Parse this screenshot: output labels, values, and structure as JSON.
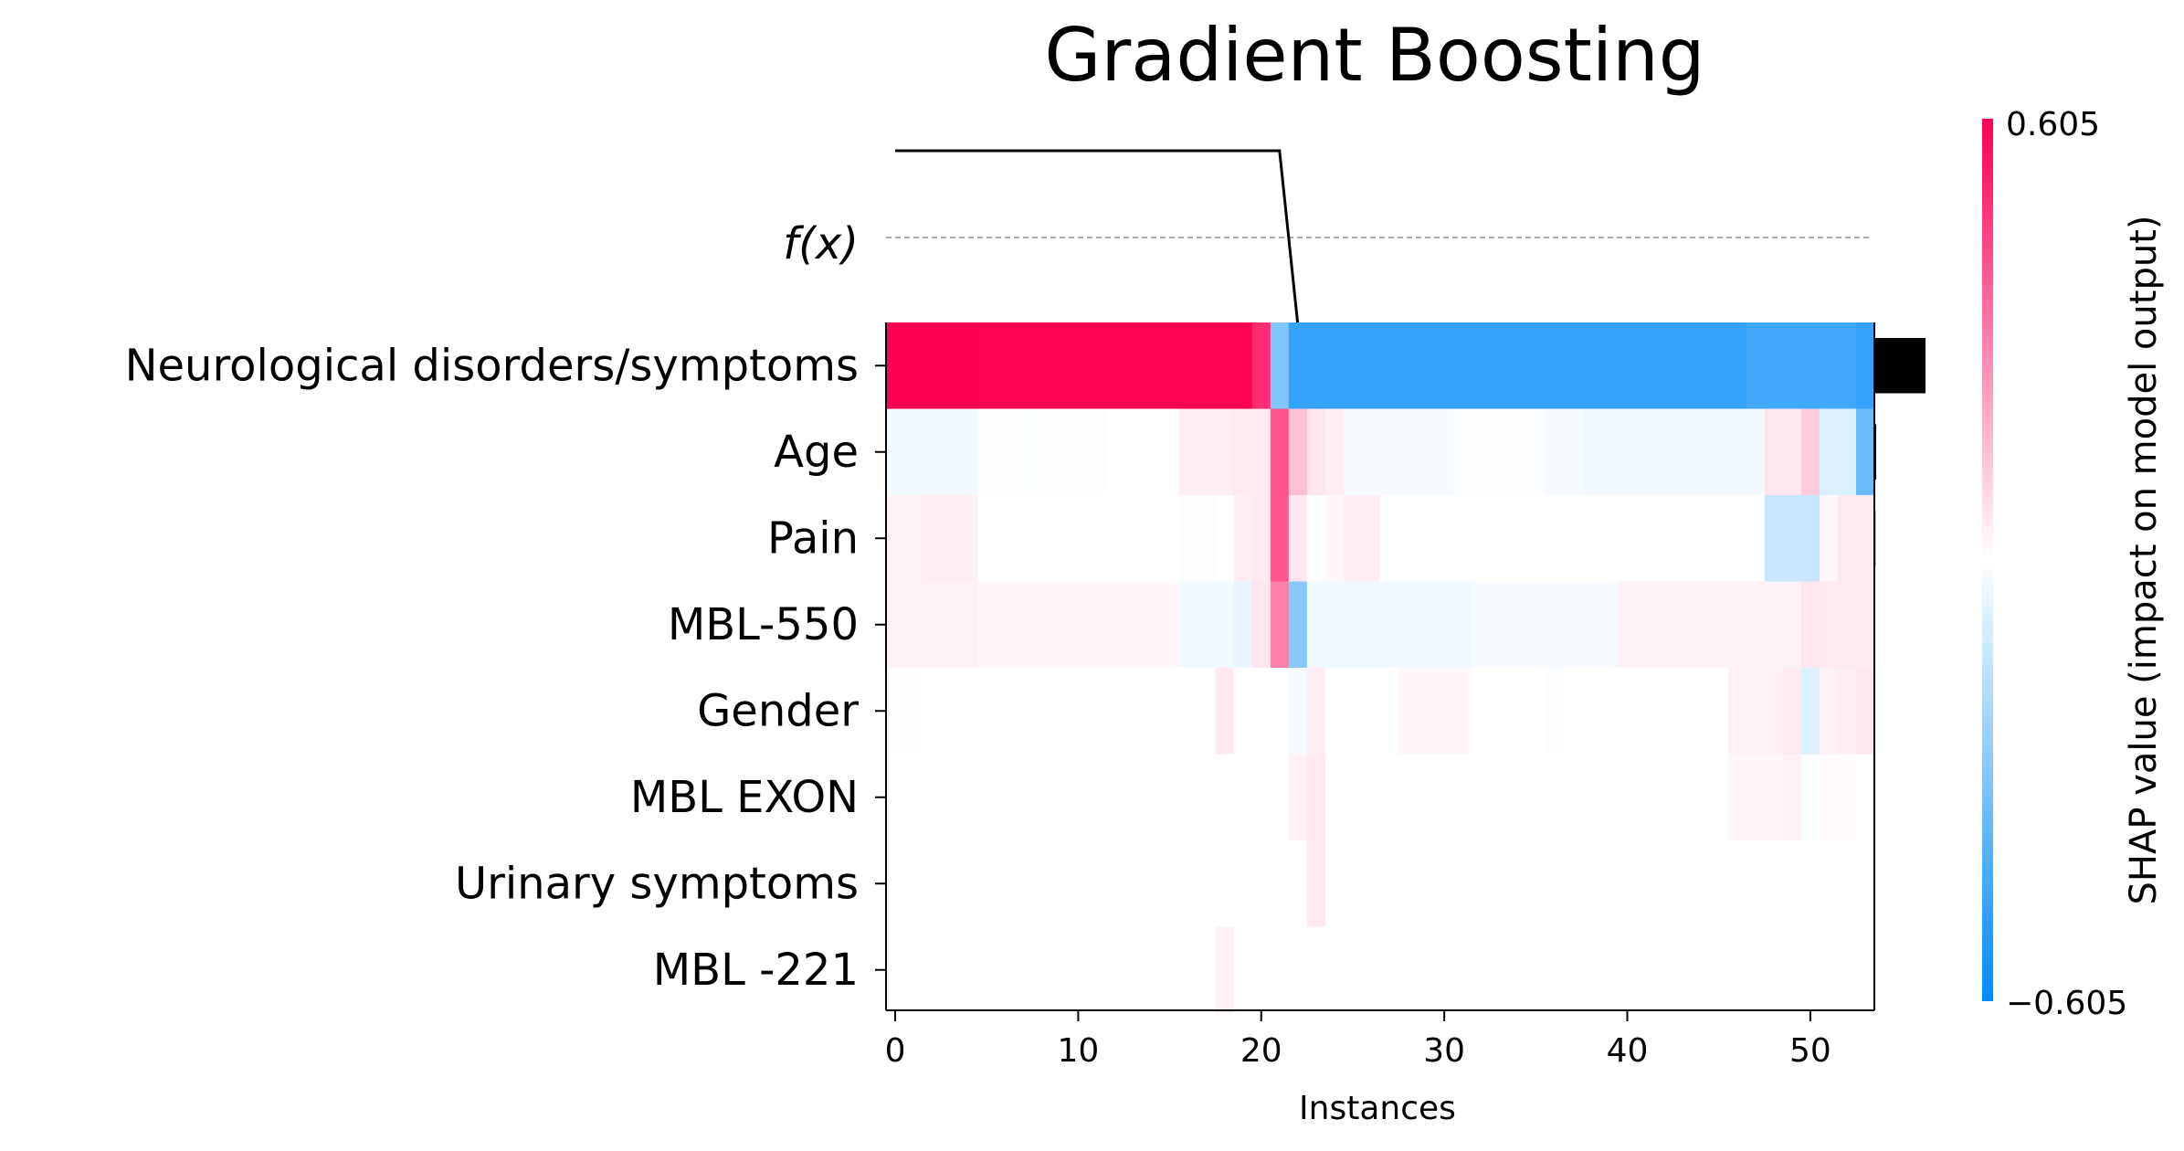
{
  "chart_data": {
    "type": "heatmap",
    "title": "Gradient Boosting",
    "xlabel": "Instances",
    "fx_label": "f(x)",
    "features": [
      "Neurological disorders/symptoms",
      "Age",
      "Pain",
      "MBL-550",
      "Gender",
      "MBL EXON",
      "Urinary symptoms",
      "MBL -221"
    ],
    "x_ticks": [
      0,
      10,
      20,
      30,
      40,
      50
    ],
    "n_instances": 54,
    "colorbar": {
      "label": "SHAP value (impact on model output)",
      "max_label": "0.605",
      "min_label": "−0.605",
      "max": 0.605,
      "min": -0.605,
      "pos_color": "#ff0052",
      "neg_color": "#008bfb"
    },
    "fx_values": [
      0.3,
      0.3,
      0.3,
      0.3,
      0.3,
      0.3,
      0.3,
      0.3,
      0.3,
      0.3,
      0.3,
      0.3,
      0.3,
      0.3,
      0.3,
      0.3,
      0.3,
      0.3,
      0.3,
      0.3,
      0.3,
      0.3,
      -0.3,
      -0.3,
      -0.3,
      -0.3,
      -0.3,
      -0.3,
      -0.3,
      -0.3,
      -0.3,
      -0.3,
      -0.3,
      -0.3,
      -0.3,
      -0.3,
      -0.3,
      -0.3,
      -0.3,
      -0.3,
      -0.3,
      -0.3,
      -0.3,
      -0.3,
      -0.3,
      -0.3,
      -0.3,
      -0.3,
      -0.3,
      -0.3,
      -0.3,
      -0.3,
      -0.3,
      -0.3
    ],
    "feature_importance": [
      0.55,
      0.02,
      0.012,
      0.01,
      0.006,
      0.003,
      0.002,
      0.001
    ],
    "shap_values": [
      [
        0.61,
        0.61,
        0.61,
        0.61,
        0.61,
        0.6,
        0.6,
        0.6,
        0.6,
        0.6,
        0.6,
        0.6,
        0.6,
        0.6,
        0.6,
        0.6,
        0.6,
        0.6,
        0.6,
        0.6,
        0.5,
        -0.3,
        -0.48,
        -0.48,
        -0.48,
        -0.48,
        -0.48,
        -0.48,
        -0.48,
        -0.48,
        -0.48,
        -0.48,
        -0.48,
        -0.48,
        -0.48,
        -0.48,
        -0.48,
        -0.48,
        -0.48,
        -0.48,
        -0.48,
        -0.48,
        -0.48,
        -0.48,
        -0.48,
        -0.48,
        -0.48,
        -0.45,
        -0.45,
        -0.45,
        -0.45,
        -0.45,
        -0.45,
        -0.48
      ],
      [
        -0.03,
        -0.03,
        -0.03,
        -0.03,
        -0.03,
        -0.01,
        -0.01,
        -0.01,
        -0.01,
        -0.01,
        -0.01,
        -0.01,
        0.0,
        0.0,
        0.0,
        0.0,
        0.04,
        0.04,
        0.04,
        0.05,
        0.05,
        0.4,
        0.15,
        0.06,
        0.04,
        -0.02,
        -0.02,
        -0.02,
        -0.02,
        -0.02,
        -0.02,
        -0.01,
        -0.01,
        -0.01,
        -0.01,
        -0.01,
        -0.02,
        -0.02,
        -0.03,
        -0.03,
        -0.03,
        -0.03,
        -0.03,
        -0.03,
        -0.03,
        -0.03,
        -0.03,
        -0.03,
        0.06,
        0.06,
        0.12,
        -0.08,
        -0.08,
        -0.35
      ],
      [
        0.03,
        0.03,
        0.04,
        0.04,
        0.04,
        0.0,
        0.0,
        0.0,
        0.0,
        0.0,
        0.0,
        0.0,
        0.0,
        0.0,
        0.0,
        0.0,
        -0.01,
        -0.01,
        0.0,
        0.04,
        0.05,
        0.4,
        0.06,
        -0.01,
        0.02,
        0.04,
        0.04,
        0.0,
        0.0,
        0.0,
        0.0,
        0.0,
        0.0,
        0.0,
        0.0,
        0.0,
        0.0,
        0.0,
        0.0,
        0.0,
        0.0,
        0.0,
        0.0,
        0.0,
        0.0,
        0.0,
        0.0,
        0.0,
        -0.13,
        -0.13,
        -0.13,
        0.02,
        0.05,
        0.05
      ],
      [
        0.03,
        0.03,
        0.03,
        0.03,
        0.03,
        0.02,
        0.02,
        0.02,
        0.02,
        0.02,
        0.02,
        0.02,
        0.02,
        0.02,
        0.02,
        0.02,
        -0.03,
        -0.03,
        -0.03,
        -0.05,
        0.06,
        0.3,
        -0.28,
        -0.03,
        -0.03,
        -0.03,
        -0.03,
        -0.03,
        -0.03,
        -0.03,
        -0.03,
        -0.03,
        -0.02,
        -0.02,
        -0.02,
        -0.02,
        -0.02,
        -0.02,
        -0.02,
        -0.02,
        0.03,
        0.03,
        0.03,
        0.03,
        0.03,
        0.03,
        0.03,
        0.03,
        0.03,
        0.03,
        0.06,
        0.05,
        0.05,
        0.05
      ],
      [
        -0.01,
        -0.01,
        0.0,
        0.0,
        0.0,
        0.0,
        0.0,
        0.0,
        0.0,
        0.0,
        0.0,
        0.0,
        0.0,
        0.0,
        0.0,
        0.0,
        0.0,
        0.0,
        0.05,
        0.0,
        0.0,
        0.0,
        -0.02,
        0.04,
        0.0,
        0.0,
        0.0,
        0.0,
        0.02,
        0.02,
        0.02,
        0.02,
        0.0,
        0.0,
        0.0,
        0.0,
        -0.01,
        0.0,
        0.0,
        0.0,
        0.0,
        0.0,
        0.0,
        0.0,
        0.0,
        0.0,
        0.03,
        0.03,
        0.03,
        0.05,
        -0.08,
        0.03,
        0.04,
        0.06
      ],
      [
        0.0,
        0.0,
        0.0,
        0.0,
        0.0,
        0.0,
        0.0,
        0.0,
        0.0,
        0.0,
        0.0,
        0.0,
        0.0,
        0.0,
        0.0,
        0.0,
        0.0,
        0.0,
        0.0,
        0.0,
        0.0,
        0.0,
        0.03,
        0.05,
        0.0,
        0.0,
        0.0,
        0.0,
        0.0,
        0.0,
        0.0,
        0.0,
        0.0,
        0.0,
        0.0,
        0.0,
        0.0,
        0.0,
        0.0,
        0.0,
        0.0,
        0.0,
        0.0,
        0.0,
        0.0,
        0.0,
        0.02,
        0.02,
        0.02,
        0.03,
        -0.01,
        0.01,
        0.01,
        0.0
      ],
      [
        0.0,
        0.0,
        0.0,
        0.0,
        0.0,
        0.0,
        0.0,
        0.0,
        0.0,
        0.0,
        0.0,
        0.0,
        0.0,
        0.0,
        0.0,
        0.0,
        0.0,
        0.0,
        0.0,
        0.0,
        0.0,
        0.0,
        0.0,
        0.05,
        0.0,
        0.0,
        0.0,
        0.0,
        0.0,
        0.0,
        0.0,
        0.0,
        0.0,
        0.0,
        0.0,
        0.0,
        0.0,
        0.0,
        0.0,
        0.0,
        0.0,
        0.0,
        0.0,
        0.0,
        0.0,
        0.0,
        0.0,
        0.0,
        0.0,
        0.0,
        0.0,
        0.0,
        0.0,
        0.0
      ],
      [
        0.0,
        0.0,
        0.0,
        0.0,
        0.0,
        0.0,
        0.0,
        0.0,
        0.0,
        0.0,
        0.0,
        0.0,
        0.0,
        0.0,
        0.0,
        0.0,
        0.0,
        0.0,
        0.03,
        0.0,
        0.0,
        0.0,
        0.0,
        0.0,
        0.0,
        0.0,
        0.0,
        0.0,
        0.0,
        0.0,
        0.0,
        0.0,
        0.0,
        0.0,
        0.0,
        0.0,
        0.0,
        0.0,
        0.0,
        0.0,
        0.0,
        0.0,
        0.0,
        0.0,
        0.0,
        0.0,
        0.0,
        0.0,
        0.0,
        0.0,
        0.0,
        0.0,
        0.0,
        0.0
      ]
    ]
  }
}
